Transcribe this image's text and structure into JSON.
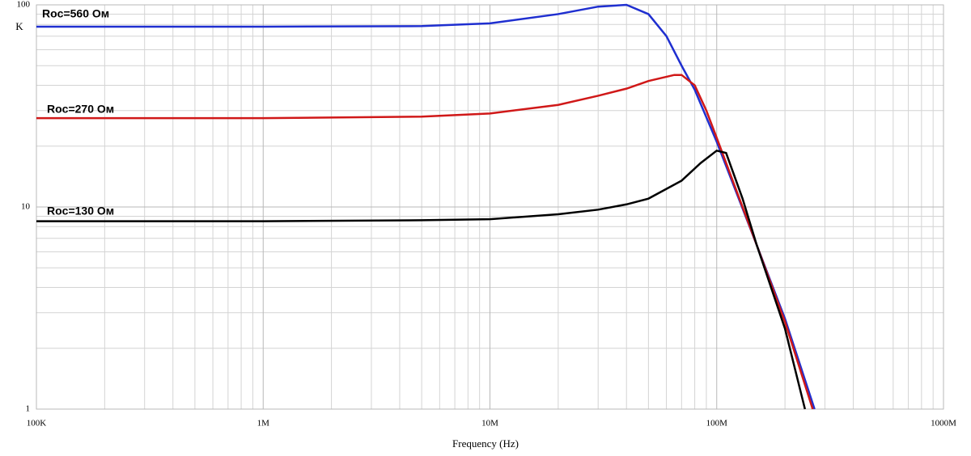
{
  "chart_data": {
    "type": "line",
    "xlabel": "Frequency (Hz)",
    "ylabel": "K",
    "xscale": "log",
    "yscale": "log",
    "grid": true,
    "minor_grid": true,
    "xlim": [
      100000,
      1000000000
    ],
    "xticks": [
      {
        "value": 100000,
        "label": "100K"
      },
      {
        "value": 1000000,
        "label": "1M"
      },
      {
        "value": 10000000,
        "label": "10M"
      },
      {
        "value": 100000000,
        "label": "100M"
      },
      {
        "value": 1000000000,
        "label": "1000M"
      }
    ],
    "ylim": [
      1,
      100
    ],
    "yticks": [
      1,
      10,
      100
    ],
    "series": [
      {
        "name": "Roc=560 Ом",
        "color": "#1f2fd0",
        "x": [
          100000,
          1000000,
          5000000,
          10000000,
          20000000,
          30000000,
          40000000,
          50000000,
          60000000,
          70000000,
          80000000,
          100000000,
          150000000,
          200000000,
          270000000
        ],
        "values": [
          78,
          78,
          78.5,
          81,
          90,
          98,
          100,
          90,
          70,
          50,
          38,
          21,
          6.5,
          2.8,
          1
        ]
      },
      {
        "name": "Roc=270 Ом",
        "color": "#d01818",
        "x": [
          100000,
          1000000,
          5000000,
          10000000,
          20000000,
          30000000,
          40000000,
          50000000,
          65000000,
          70000000,
          80000000,
          90000000,
          100000000,
          150000000,
          200000000,
          265000000
        ],
        "values": [
          27.5,
          27.5,
          28,
          29,
          32,
          35.5,
          38.5,
          42,
          45,
          45,
          40,
          30,
          22,
          6.5,
          2.7,
          1
        ]
      },
      {
        "name": "Roc=130 Ом",
        "color": "#000000",
        "x": [
          100000,
          1000000,
          5000000,
          10000000,
          20000000,
          30000000,
          40000000,
          50000000,
          70000000,
          85000000,
          100000000,
          110000000,
          130000000,
          150000000,
          200000000,
          245000000
        ],
        "values": [
          8.5,
          8.5,
          8.6,
          8.7,
          9.2,
          9.7,
          10.3,
          11,
          13.5,
          16.5,
          19,
          18.5,
          11,
          6.5,
          2.5,
          1
        ]
      }
    ]
  }
}
